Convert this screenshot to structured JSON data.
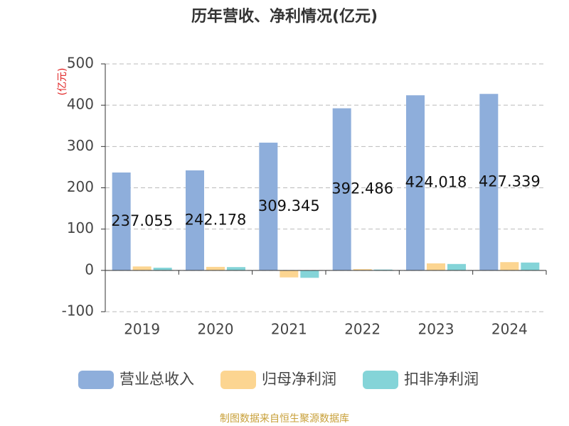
{
  "chart_data": {
    "type": "bar",
    "title": "历年营收、净利情况(亿元)",
    "y_unit": "(亿元)",
    "source": "制图数据来自恒生聚源数据库",
    "categories": [
      "2019",
      "2020",
      "2021",
      "2022",
      "2023",
      "2024"
    ],
    "series": [
      {
        "name": "营业总收入",
        "color": "#8eaedb",
        "values": [
          237.055,
          242.178,
          309.345,
          392.486,
          424.018,
          427.339
        ]
      },
      {
        "name": "归母净利润",
        "color": "#fcd591",
        "values": [
          9.5,
          8.5,
          -17,
          3,
          17,
          20
        ]
      },
      {
        "name": "扣非净利润",
        "color": "#84d4d8",
        "values": [
          6.5,
          8,
          -18,
          2,
          15.5,
          19
        ]
      }
    ],
    "ylim": [
      -100,
      500
    ],
    "yticks": [
      -100,
      0,
      100,
      200,
      300,
      400,
      500
    ],
    "grid": true
  }
}
